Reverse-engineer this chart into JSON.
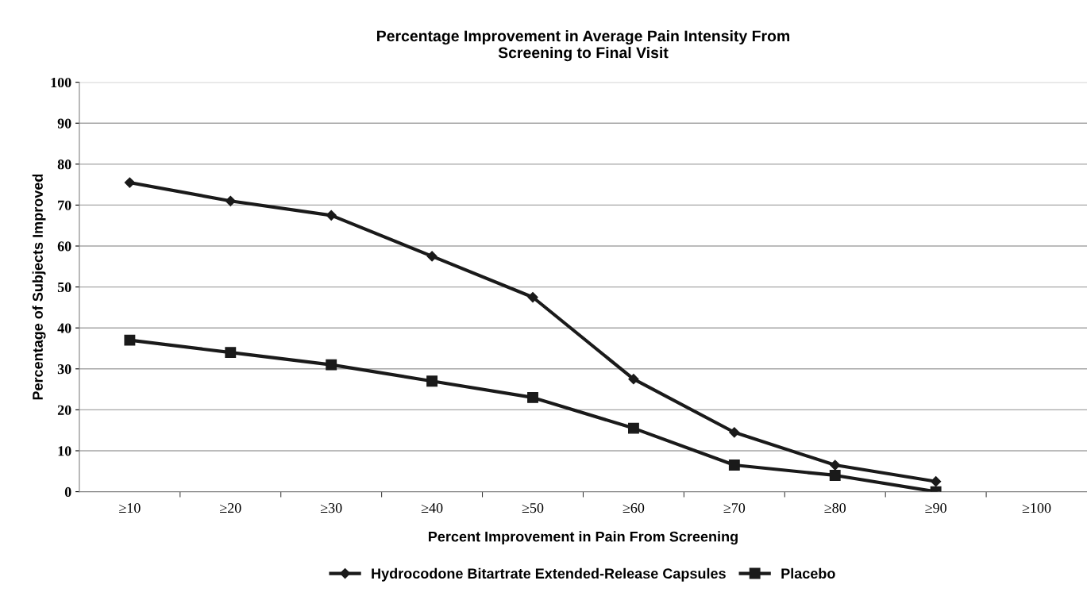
{
  "chart_data": {
    "type": "line",
    "title": "Percentage Improvement in Average Pain Intensity From\nScreening to Final Visit",
    "xlabel": "Percent Improvement in Pain From Screening",
    "ylabel": "Percentage of Subjects Improved",
    "categories": [
      "≥10",
      "≥20",
      "≥30",
      "≥40",
      "≥50",
      "≥60",
      "≥70",
      "≥80",
      "≥90",
      "≥100"
    ],
    "series": [
      {
        "name": "Hydrocodone Bitartrate Extended-Release Capsules",
        "color": "#1a1a1a",
        "marker": "diamond",
        "values": [
          75.5,
          71,
          67.5,
          57.5,
          47.5,
          27.5,
          14.5,
          6.5,
          2.5,
          null
        ]
      },
      {
        "name": "Placebo",
        "color": "#1a1a1a",
        "marker": "square",
        "values": [
          37,
          34,
          31,
          27,
          23,
          15.5,
          6.5,
          4,
          0,
          null
        ]
      }
    ],
    "ylim": [
      0,
      100
    ],
    "yticks": [
      0,
      10,
      20,
      30,
      40,
      50,
      60,
      70,
      80,
      90,
      100
    ],
    "grid": "y",
    "legend": "bottom"
  }
}
